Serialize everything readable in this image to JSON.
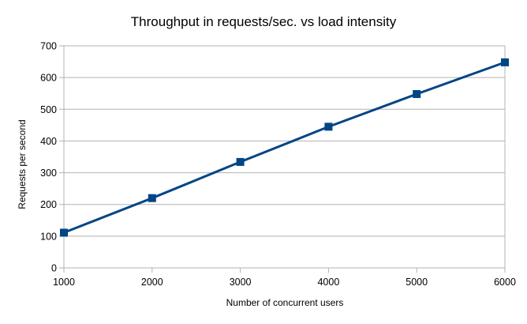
{
  "chart_data": {
    "type": "line",
    "title": "Throughput in requests/sec. vs load intensity",
    "xlabel": "Number of concurrent users",
    "ylabel": "Requests per second",
    "xlim": [
      1000,
      6000
    ],
    "ylim": [
      0,
      700
    ],
    "x_ticks": [
      1000,
      2000,
      3000,
      4000,
      5000,
      6000
    ],
    "y_ticks": [
      0,
      100,
      200,
      300,
      400,
      500,
      600,
      700
    ],
    "grid": true,
    "legend": "none",
    "series": [
      {
        "x": [
          1000,
          2000,
          3000,
          4000,
          5000,
          6000
        ],
        "values": [
          111,
          220,
          334,
          445,
          548,
          648
        ],
        "color": "#004586",
        "marker": "square"
      }
    ]
  }
}
